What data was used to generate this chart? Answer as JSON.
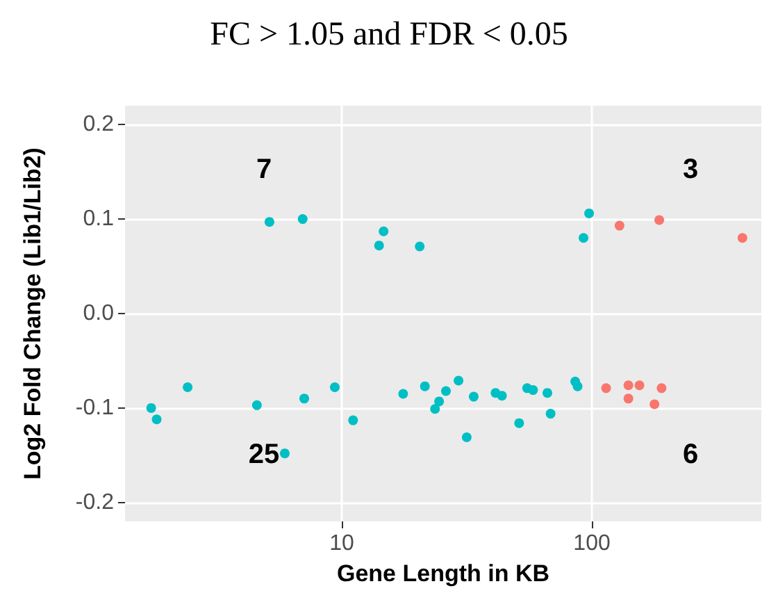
{
  "chart_data": {
    "type": "scatter",
    "title": "FC > 1.05 and FDR < 0.05",
    "xlabel": "Gene Length in KB",
    "ylabel": "Log2 Fold Change (Lib1/Lib2)",
    "log": "x",
    "grid": true,
    "marker": "circle",
    "xlim": [
      1.36,
      476
    ],
    "xticks": [
      10,
      100
    ],
    "ylim": [
      -0.22,
      0.22
    ],
    "yticks": [
      {
        "value": -0.2,
        "label": "-0.2"
      },
      {
        "value": -0.1,
        "label": "-0.1"
      },
      {
        "value": 0,
        "label": "0.0"
      },
      {
        "value": 0.1,
        "label": "0.1"
      },
      {
        "value": 0.2,
        "label": "0.2"
      }
    ],
    "annotations": [
      "7",
      "3",
      "25",
      "6"
    ],
    "series": [
      {
        "color": "#00bfc4",
        "x": [
          5.14,
          6.98,
          14.1,
          14.7,
          20.5,
          92.6,
          97.5,
          1.73,
          1.82,
          2.42,
          4.58,
          7.08,
          5.92,
          9.38,
          11.1,
          17.6,
          21.5,
          23.6,
          24.5,
          26.1,
          29.3,
          31.6,
          33.7,
          41.2,
          43.7,
          51.2,
          55.1,
          58.2,
          66.4,
          68.4,
          85.8,
          87.7
        ],
        "values": [
          0.097,
          0.1,
          0.072,
          0.087,
          0.071,
          0.08,
          0.106,
          -0.1,
          -0.112,
          -0.078,
          -0.097,
          -0.09,
          -0.148,
          -0.078,
          -0.113,
          -0.085,
          -0.077,
          -0.101,
          -0.093,
          -0.082,
          -0.071,
          -0.131,
          -0.088,
          -0.084,
          -0.087,
          -0.116,
          -0.079,
          -0.081,
          -0.084,
          -0.106,
          -0.072,
          -0.077
        ]
      },
      {
        "color": "#f8766d",
        "x": [
          129,
          186,
          400,
          114,
          140,
          140,
          155,
          178,
          190
        ],
        "values": [
          0.093,
          0.099,
          0.08,
          -0.079,
          -0.076,
          -0.09,
          -0.076,
          -0.096,
          -0.079
        ]
      }
    ]
  }
}
